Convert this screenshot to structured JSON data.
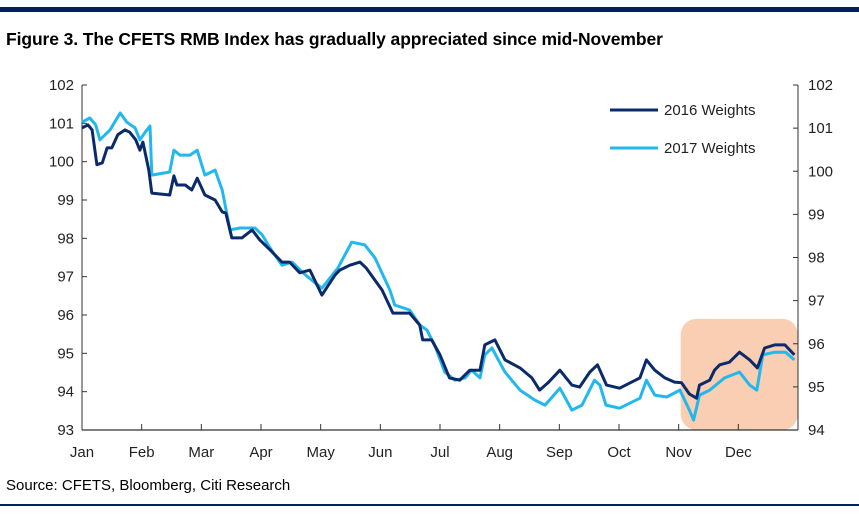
{
  "title": "Figure 3. The CFETS RMB Index has gradually appreciated since mid-November",
  "source": "Source: CFETS, Bloomberg, Citi Research",
  "chart_data": {
    "type": "line",
    "title": "Figure 3. The CFETS RMB Index has gradually appreciated since mid-November",
    "xlabel": "",
    "ylabel": "",
    "x_unit": "months since start of year (0 = Jan)",
    "categories": [
      "Jan",
      "Feb",
      "Mar",
      "Apr",
      "May",
      "Jun",
      "Jul",
      "Aug",
      "Sep",
      "Oct",
      "Nov",
      "Dec"
    ],
    "ylim_left": [
      93,
      102
    ],
    "yticks_left": [
      "93",
      "94",
      "95",
      "96",
      "97",
      "98",
      "99",
      "100",
      "101",
      "102"
    ],
    "ylim_right": [
      94,
      102
    ],
    "yticks_right": [
      "94",
      "95",
      "96",
      "97",
      "98",
      "99",
      "100",
      "101",
      "102"
    ],
    "legend_position": "top-right",
    "highlight": {
      "x_start": 10.0,
      "x_end": 12.0,
      "y_start": 93,
      "y_end": 95.9,
      "color": "#f8c6a4"
    },
    "series": [
      {
        "name": "2016 Weights",
        "color": "#0b2a6b",
        "x": [
          0,
          0.1,
          0.17,
          0.25,
          0.34,
          0.42,
          0.5,
          0.6,
          0.72,
          0.8,
          0.9,
          0.97,
          1.02,
          1.12,
          1.17,
          1.47,
          1.54,
          1.59,
          1.73,
          1.84,
          1.93,
          2.06,
          2.23,
          2.35,
          2.41,
          2.51,
          2.68,
          2.85,
          2.98,
          3.15,
          3.35,
          3.48,
          3.65,
          3.82,
          4.02,
          4.24,
          4.32,
          4.49,
          4.66,
          4.76,
          5.03,
          5.21,
          5.49,
          5.66,
          5.71,
          5.86,
          6.0,
          6.16,
          6.33,
          6.5,
          6.67,
          6.75,
          6.92,
          7.09,
          7.34,
          7.54,
          7.67,
          7.81,
          8.01,
          8.21,
          8.34,
          8.51,
          8.64,
          8.79,
          9.01,
          9.35,
          9.46,
          9.6,
          9.77,
          9.93,
          10.05,
          10.18,
          10.3,
          10.35,
          10.52,
          10.6,
          10.69,
          10.85,
          11.02,
          11.19,
          11.32,
          11.44,
          11.61,
          11.78,
          11.94
        ],
        "values": [
          100.88,
          100.96,
          100.83,
          99.92,
          99.97,
          100.36,
          100.36,
          100.7,
          100.83,
          100.77,
          100.57,
          100.3,
          100.51,
          99.78,
          99.18,
          99.13,
          99.63,
          99.39,
          99.39,
          99.26,
          99.57,
          99.13,
          99.0,
          98.69,
          98.66,
          98.01,
          98.01,
          98.22,
          97.96,
          97.7,
          97.38,
          97.38,
          97.1,
          97.17,
          96.52,
          97.04,
          97.17,
          97.3,
          97.38,
          97.23,
          96.65,
          96.05,
          96.05,
          95.74,
          95.35,
          95.35,
          94.96,
          94.36,
          94.3,
          94.56,
          94.56,
          95.22,
          95.35,
          94.83,
          94.62,
          94.36,
          94.04,
          94.23,
          94.56,
          94.17,
          94.12,
          94.51,
          94.7,
          94.17,
          94.09,
          94.36,
          94.83,
          94.56,
          94.36,
          94.25,
          94.23,
          93.94,
          93.83,
          94.17,
          94.3,
          94.56,
          94.7,
          94.77,
          95.03,
          94.83,
          94.62,
          95.14,
          95.22,
          95.22,
          94.96
        ]
      },
      {
        "name": "2017 Weights",
        "color": "#22b8ee",
        "x": [
          0,
          0.13,
          0.23,
          0.3,
          0.47,
          0.64,
          0.75,
          0.89,
          0.97,
          1.06,
          1.14,
          1.17,
          1.47,
          1.54,
          1.64,
          1.81,
          1.93,
          2.06,
          2.23,
          2.35,
          2.48,
          2.65,
          2.9,
          3.02,
          3.15,
          3.35,
          3.52,
          3.69,
          3.85,
          4.02,
          4.29,
          4.52,
          4.74,
          4.91,
          5.16,
          5.24,
          5.49,
          5.66,
          5.78,
          5.91,
          6.08,
          6.25,
          6.42,
          6.53,
          6.67,
          6.75,
          6.87,
          7.09,
          7.34,
          7.59,
          7.76,
          8.01,
          8.21,
          8.38,
          8.59,
          8.68,
          8.78,
          9.01,
          9.35,
          9.46,
          9.6,
          9.8,
          10.02,
          10.18,
          10.25,
          10.35,
          10.52,
          10.77,
          11.02,
          11.19,
          11.31,
          11.41,
          11.61,
          11.79,
          11.94
        ],
        "values": [
          101.03,
          101.14,
          100.96,
          100.57,
          100.83,
          101.27,
          101.03,
          100.88,
          100.57,
          100.77,
          100.93,
          99.65,
          99.73,
          100.3,
          100.17,
          100.17,
          100.3,
          99.65,
          99.78,
          99.26,
          98.22,
          98.27,
          98.27,
          98.09,
          97.75,
          97.3,
          97.38,
          97.12,
          96.91,
          96.7,
          97.23,
          97.9,
          97.83,
          97.49,
          96.65,
          96.26,
          96.13,
          95.74,
          95.61,
          95.22,
          94.51,
          94.3,
          94.36,
          94.56,
          94.36,
          94.96,
          95.14,
          94.51,
          94.04,
          93.78,
          93.65,
          94.09,
          93.52,
          93.65,
          94.3,
          94.17,
          93.65,
          93.57,
          93.83,
          94.3,
          93.91,
          93.86,
          94.04,
          93.52,
          93.26,
          93.91,
          94.04,
          94.36,
          94.51,
          94.17,
          94.04,
          94.96,
          95.03,
          95.03,
          94.83
        ]
      }
    ]
  }
}
